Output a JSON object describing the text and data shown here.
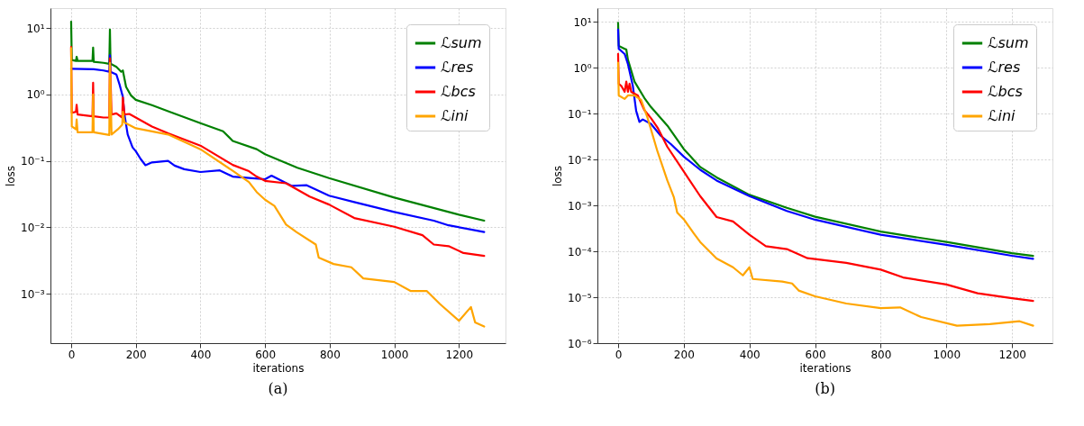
{
  "chart_data": [
    {
      "type": "line",
      "title": "(a)",
      "xlabel": "iterations",
      "ylabel": "loss",
      "log": "y",
      "grid": true,
      "legend": "top right",
      "line_style": "solid",
      "xlim": [
        -64,
        1344
      ],
      "xticks": [
        0,
        200,
        400,
        600,
        800,
        1000,
        1200
      ],
      "ylim": [
        0.00018,
        20
      ],
      "yticks": [
        {
          "value": 0.001,
          "label": "10⁻³"
        },
        {
          "value": 0.01,
          "label": "10⁻²"
        },
        {
          "value": 0.1,
          "label": "10⁻¹"
        },
        {
          "value": 1,
          "label": "10⁰"
        },
        {
          "value": 10,
          "label": "10¹"
        }
      ],
      "series": [
        {
          "name": "ℒsum",
          "color": "#008000",
          "x": [
            0,
            2,
            15,
            17,
            20,
            66,
            68,
            70,
            100,
            118,
            120,
            122,
            140,
            155,
            160,
            170,
            185,
            200,
            250,
            300,
            400,
            470,
            500,
            574,
            600,
            700,
            798,
            1000,
            1200,
            1278
          ],
          "values": [
            12.5,
            3.3,
            3.2,
            3.7,
            3.2,
            3.2,
            5.1,
            3.1,
            3.0,
            2.9,
            9.5,
            2.9,
            2.6,
            2.2,
            2.3,
            1.3,
            0.97,
            0.83,
            0.69,
            0.56,
            0.37,
            0.28,
            0.2,
            0.15,
            0.126,
            0.079,
            0.055,
            0.028,
            0.0155,
            0.0126
          ]
        },
        {
          "name": "ℒres",
          "color": "#0000ff",
          "x": [
            0,
            70,
            100,
            118,
            120,
            122,
            140,
            150,
            160,
            165,
            175,
            190,
            200,
            215,
            230,
            250,
            300,
            320,
            350,
            400,
            460,
            500,
            560,
            600,
            620,
            683,
            729,
            798,
            876,
            1000,
            1122,
            1168,
            1278
          ],
          "values": [
            2.44,
            2.4,
            2.3,
            2.2,
            3.9,
            2.2,
            2.0,
            1.4,
            0.92,
            0.5,
            0.25,
            0.16,
            0.14,
            0.107,
            0.086,
            0.095,
            0.1,
            0.085,
            0.075,
            0.068,
            0.072,
            0.058,
            0.055,
            0.053,
            0.06,
            0.042,
            0.043,
            0.03,
            0.024,
            0.017,
            0.0126,
            0.0107,
            0.0085
          ]
        },
        {
          "name": "ℒbcs",
          "color": "#ff0000",
          "x": [
            0,
            2,
            15,
            17,
            20,
            66,
            68,
            70,
            100,
            118,
            120,
            125,
            140,
            158,
            160,
            165,
            180,
            250,
            300,
            400,
            500,
            550,
            574,
            600,
            665,
            738,
            798,
            876,
            1000,
            1087,
            1122,
            1168,
            1214,
            1278
          ],
          "values": [
            5.2,
            0.53,
            0.55,
            0.7,
            0.5,
            0.47,
            1.5,
            0.47,
            0.45,
            0.45,
            3.5,
            0.5,
            0.52,
            0.45,
            0.9,
            0.5,
            0.51,
            0.33,
            0.26,
            0.17,
            0.087,
            0.07,
            0.058,
            0.05,
            0.046,
            0.029,
            0.022,
            0.0138,
            0.0102,
            0.0076,
            0.0055,
            0.0052,
            0.0041,
            0.0037
          ]
        },
        {
          "name": "ℒini",
          "color": "#ffa500",
          "x": [
            0,
            2,
            15,
            17,
            20,
            66,
            68,
            70,
            118,
            120,
            125,
            145,
            158,
            160,
            165,
            200,
            300,
            400,
            500,
            550,
            574,
            600,
            629,
            665,
            697,
            757,
            766,
            812,
            867,
            904,
            1000,
            1050,
            1100,
            1141,
            1200,
            1237,
            1250,
            1278
          ],
          "values": [
            5.0,
            0.33,
            0.3,
            0.42,
            0.27,
            0.27,
            1.0,
            0.27,
            0.245,
            3.0,
            0.25,
            0.3,
            0.35,
            0.55,
            0.38,
            0.31,
            0.25,
            0.15,
            0.071,
            0.048,
            0.034,
            0.026,
            0.021,
            0.011,
            0.0085,
            0.0055,
            0.0035,
            0.0028,
            0.0025,
            0.0017,
            0.0015,
            0.0011,
            0.0011,
            0.0007,
            0.00039,
            0.00063,
            0.00037,
            0.00032
          ]
        }
      ]
    },
    {
      "type": "line",
      "title": "(b)",
      "xlabel": "iterations",
      "ylabel": "loss",
      "log": "y",
      "grid": true,
      "legend": "top right",
      "line_style": "solid",
      "xlim": [
        -63,
        1323
      ],
      "xticks": [
        0,
        200,
        400,
        600,
        800,
        1000,
        1200
      ],
      "ylim": [
        1e-06,
        20
      ],
      "yticks": [
        {
          "value": 1e-06,
          "label": "10⁻⁶"
        },
        {
          "value": 1e-05,
          "label": "10⁻⁵"
        },
        {
          "value": 0.0001,
          "label": "10⁻⁴"
        },
        {
          "value": 0.001,
          "label": "10⁻³"
        },
        {
          "value": 0.01,
          "label": "10⁻²"
        },
        {
          "value": 0.1,
          "label": "10⁻¹"
        },
        {
          "value": 1,
          "label": "10⁰"
        },
        {
          "value": 10,
          "label": "10¹"
        }
      ],
      "series": [
        {
          "name": "ℒsum",
          "color": "#008000",
          "x": [
            0,
            2,
            20,
            25,
            30,
            50,
            80,
            100,
            150,
            200,
            250,
            300,
            400,
            514,
            600,
            800,
            1000,
            1200,
            1264
          ],
          "values": [
            9.5,
            3.0,
            2.6,
            2.5,
            1.5,
            0.5,
            0.22,
            0.14,
            0.055,
            0.017,
            0.0069,
            0.0041,
            0.0017,
            0.00089,
            0.00057,
            0.00027,
            0.00016,
            9.1e-05,
            8e-05
          ]
        },
        {
          "name": "ℒres",
          "color": "#0000ff",
          "x": [
            0,
            2,
            20,
            30,
            45,
            55,
            65,
            75,
            100,
            130,
            160,
            200,
            250,
            300,
            400,
            514,
            600,
            800,
            1000,
            1200,
            1264
          ],
          "values": [
            6.8,
            2.6,
            2.0,
            1.2,
            0.4,
            0.115,
            0.066,
            0.075,
            0.06,
            0.033,
            0.022,
            0.0116,
            0.006,
            0.0035,
            0.0016,
            0.00076,
            0.00049,
            0.00023,
            0.000139,
            8e-05,
            6.9e-05
          ]
        },
        {
          "name": "ℒbcs",
          "color": "#ff0000",
          "x": [
            0,
            2,
            10,
            20,
            25,
            30,
            35,
            40,
            60,
            80,
            100,
            120,
            150,
            200,
            250,
            300,
            350,
            400,
            450,
            514,
            577,
            695,
            800,
            868,
            1000,
            1095,
            1200,
            1264
          ],
          "values": [
            2.0,
            0.45,
            0.4,
            0.3,
            0.5,
            0.3,
            0.45,
            0.3,
            0.25,
            0.12,
            0.08,
            0.05,
            0.019,
            0.0055,
            0.0016,
            0.00056,
            0.00045,
            0.00023,
            0.00013,
            0.000112,
            7.1e-05,
            5.6e-05,
            4e-05,
            2.7e-05,
            1.9e-05,
            1.22e-05,
            9.5e-06,
            8.3e-06
          ]
        },
        {
          "name": "ℒini",
          "color": "#ffa500",
          "x": [
            0,
            2,
            20,
            30,
            50,
            70,
            90,
            120,
            150,
            170,
            180,
            200,
            230,
            250,
            300,
            350,
            380,
            400,
            410,
            500,
            530,
            550,
            600,
            695,
            800,
            859,
            923,
            1032,
            1132,
            1223,
            1264
          ],
          "values": [
            1.3,
            0.25,
            0.21,
            0.25,
            0.25,
            0.2,
            0.08,
            0.015,
            0.0035,
            0.0015,
            0.0007,
            0.0005,
            0.00025,
            0.00016,
            7e-05,
            4.5e-05,
            3e-05,
            4.5e-05,
            2.5e-05,
            2.2e-05,
            2e-05,
            1.4e-05,
            1.05e-05,
            7.3e-06,
            5.8e-06,
            6e-06,
            3.7e-06,
            2.4e-06,
            2.6e-06,
            3e-06,
            2.4e-06
          ]
        }
      ]
    }
  ]
}
